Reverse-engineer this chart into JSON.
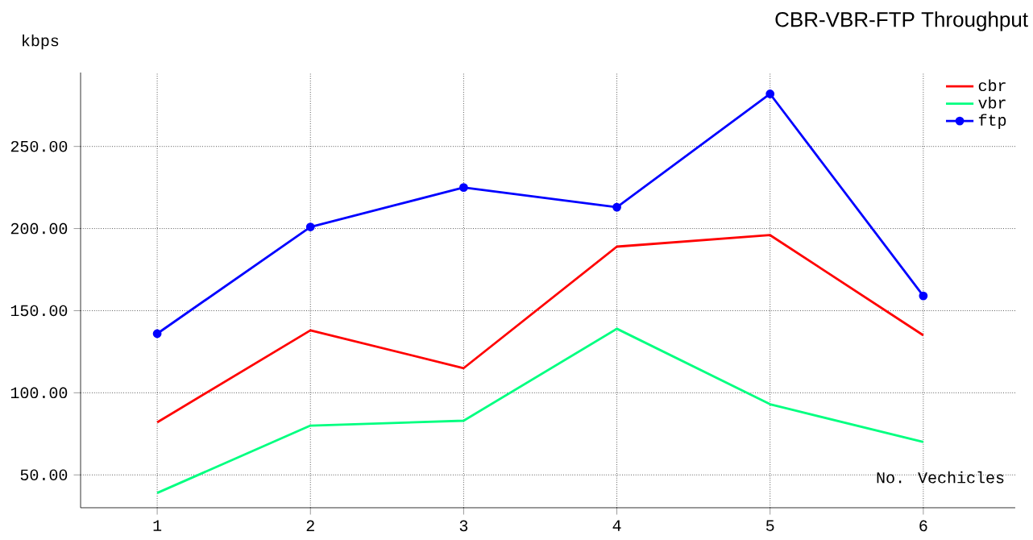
{
  "chart_data": {
    "type": "line",
    "title": "CBR-VBR-FTP Throughput",
    "xlabel": "No. Vechicles",
    "ylabel": "kbps",
    "x": [
      1,
      2,
      3,
      4,
      5,
      6
    ],
    "series": [
      {
        "name": "cbr",
        "color": "#ff0000",
        "values": [
          82,
          138,
          115,
          189,
          196,
          135
        ]
      },
      {
        "name": "vbr",
        "color": "#00ff80",
        "values": [
          39,
          80,
          83,
          139,
          93,
          70
        ]
      },
      {
        "name": "ftp",
        "color": "#0000ff",
        "values": [
          136,
          201,
          225,
          213,
          282,
          159
        ],
        "marker": "circle"
      }
    ],
    "xlim": [
      0.5,
      6.6
    ],
    "ylim": [
      30,
      295
    ],
    "xticks": [
      1,
      2,
      3,
      4,
      5,
      6
    ],
    "yticks": [
      {
        "value": 50,
        "label": "50.00"
      },
      {
        "value": 100,
        "label": "100.00"
      },
      {
        "value": 150,
        "label": "150.00"
      },
      {
        "value": 200,
        "label": "200.00"
      },
      {
        "value": 250,
        "label": "250.00"
      }
    ],
    "grid": true,
    "legend": "top right",
    "marker": "none",
    "line_style": "solid"
  }
}
